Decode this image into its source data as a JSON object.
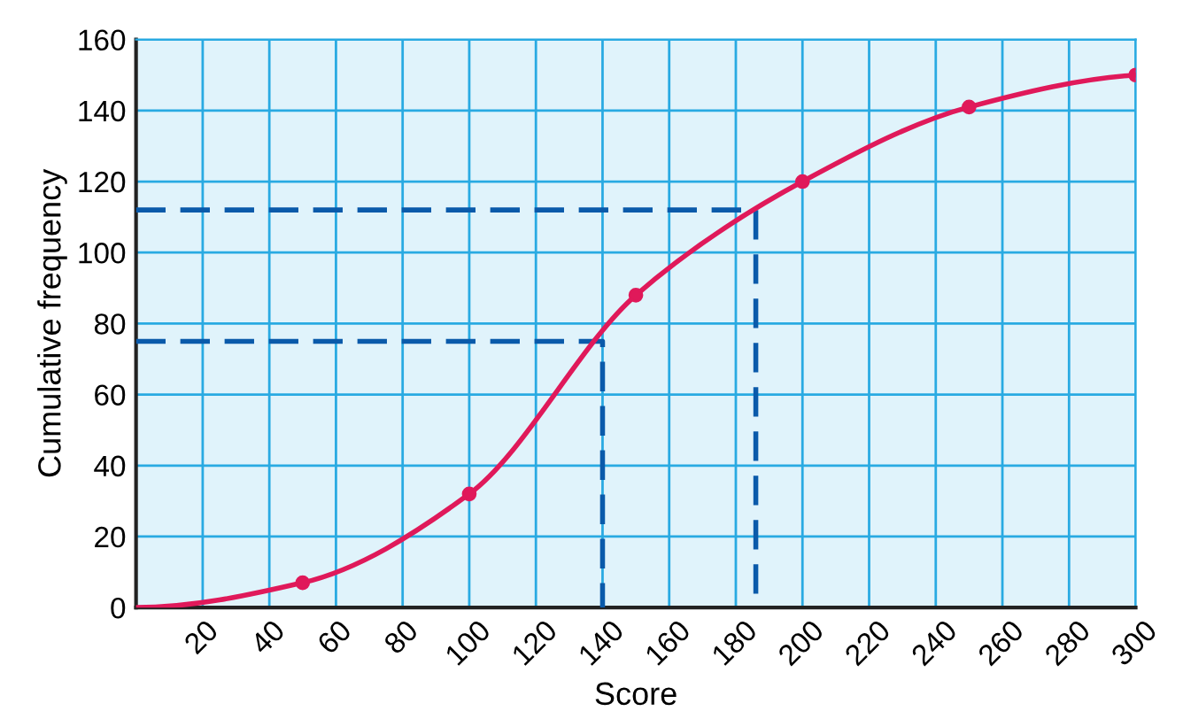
{
  "chart_data": {
    "type": "line",
    "xlabel": "Score",
    "ylabel": "Cumulative frequency",
    "xlim": [
      0,
      300
    ],
    "ylim": [
      0,
      160
    ],
    "xticks": [
      20,
      40,
      60,
      80,
      100,
      120,
      140,
      160,
      180,
      200,
      220,
      240,
      260,
      280,
      300
    ],
    "yticks": [
      0,
      20,
      40,
      60,
      80,
      100,
      120,
      140,
      160
    ],
    "grid": true,
    "legend": false,
    "series": [
      {
        "color": "#e0195a",
        "x": [
          0,
          50,
          100,
          150,
          200,
          250,
          300
        ],
        "values": [
          0,
          7,
          32,
          88,
          120,
          141,
          150
        ],
        "marker": "none",
        "line_style": "solid"
      },
      {
        "type": "scatter",
        "color": "#e0195a",
        "x": [
          50,
          100,
          150,
          200,
          250,
          300
        ],
        "values": [
          7,
          32,
          88,
          120,
          141,
          150
        ],
        "marker": "circle"
      },
      {
        "type": "line",
        "color": "#0a5aaa",
        "x": [
          0,
          140,
          140
        ],
        "values": [
          75,
          75,
          0
        ],
        "marker": "none",
        "line_style": "dashed"
      },
      {
        "type": "line",
        "color": "#0a5aaa",
        "x": [
          0,
          186,
          186
        ],
        "values": [
          112,
          112,
          0
        ],
        "marker": "none",
        "line_style": "dashed"
      }
    ]
  }
}
